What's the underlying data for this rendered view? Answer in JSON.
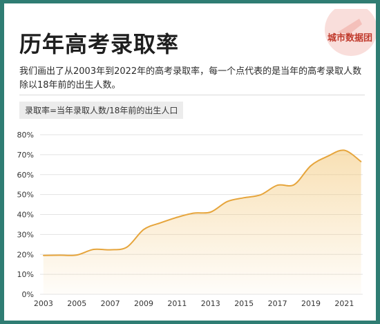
{
  "header": {
    "title": "历年高考录取率",
    "brand": "城市数据团"
  },
  "description": "我们画出了从2003年到2022年的高考录取率，每一个点代表的是当年的高考录取人数除以18年前的出生人数。",
  "formula": "录取率=当年录取人数/18年前的出生人口",
  "colors": {
    "line": "#e6a53c",
    "area": "#f3c777",
    "frame": "#2f7d73",
    "brand": "#c0392b"
  },
  "chart_data": {
    "type": "area",
    "x": [
      2003,
      2004,
      2005,
      2006,
      2007,
      2008,
      2009,
      2010,
      2011,
      2012,
      2013,
      2014,
      2015,
      2016,
      2017,
      2018,
      2019,
      2020,
      2021,
      2022
    ],
    "y": [
      19.5,
      19.6,
      19.7,
      22.5,
      22.3,
      23.7,
      32.5,
      35.8,
      38.6,
      40.7,
      41.2,
      46.5,
      48.4,
      49.9,
      54.7,
      55.0,
      64.5,
      69.2,
      72.2,
      66.5
    ],
    "xlim": [
      2002.8,
      2022.1
    ],
    "ylim": [
      0,
      80
    ],
    "y_ticks": [
      0,
      10,
      20,
      30,
      40,
      50,
      60,
      70,
      80
    ],
    "y_tick_labels": [
      "0%",
      "10%",
      "20%",
      "30%",
      "40%",
      "50%",
      "60%",
      "70%",
      "80%"
    ],
    "x_ticks": [
      2003,
      2005,
      2007,
      2009,
      2011,
      2013,
      2015,
      2017,
      2019,
      2021
    ],
    "x_tick_labels": [
      "2003",
      "2005",
      "2007",
      "2009",
      "2011",
      "2013",
      "2015",
      "2017",
      "2019",
      "2021"
    ],
    "grid": true,
    "title": "",
    "xlabel": "",
    "ylabel": ""
  }
}
